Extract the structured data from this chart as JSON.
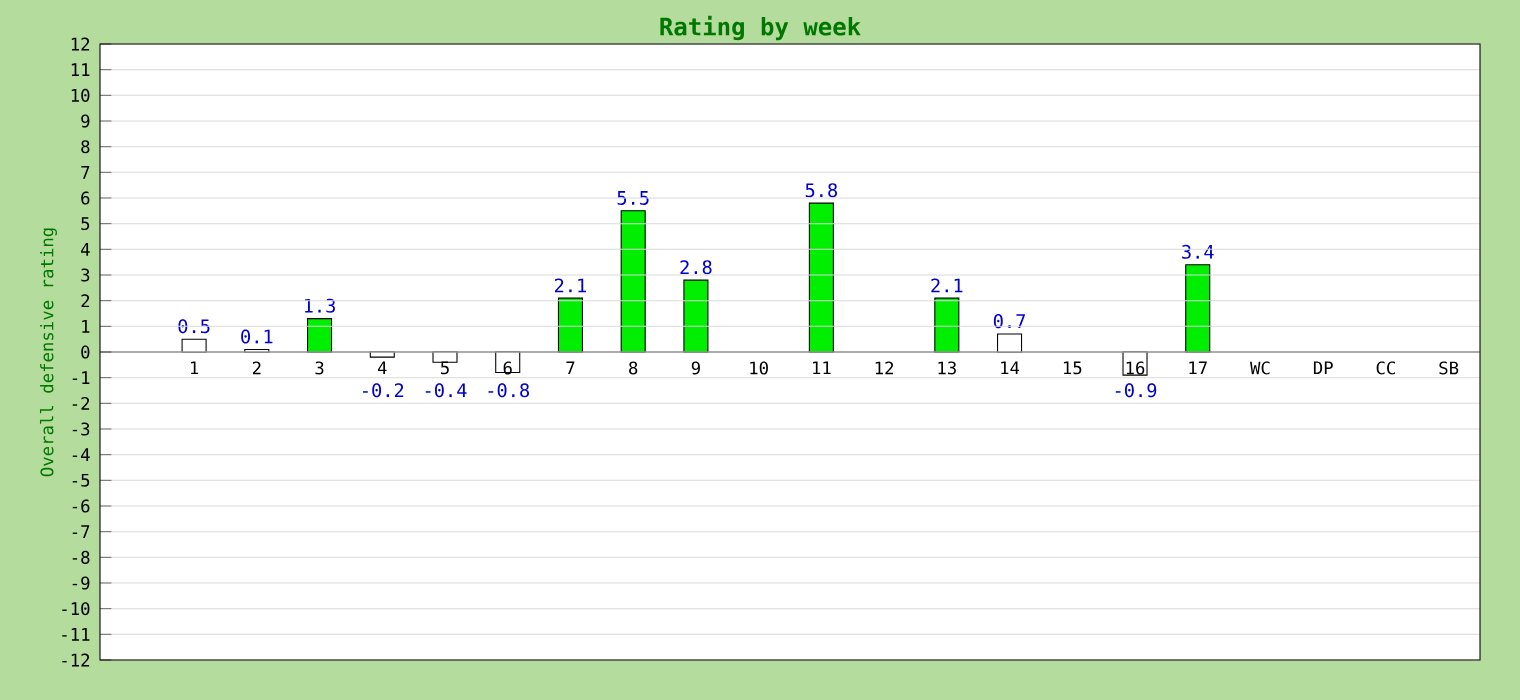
{
  "chart_data": {
    "type": "bar",
    "title": "Rating by week",
    "ylabel": "Overall defensive rating",
    "categories": [
      "1",
      "2",
      "3",
      "4",
      "5",
      "6",
      "7",
      "8",
      "9",
      "10",
      "11",
      "12",
      "13",
      "14",
      "15",
      "16",
      "17",
      "WC",
      "DP",
      "CC",
      "SB"
    ],
    "values": [
      0.5,
      0.1,
      1.3,
      -0.2,
      -0.4,
      -0.8,
      2.1,
      5.5,
      2.8,
      null,
      5.8,
      null,
      2.1,
      0.7,
      null,
      -0.9,
      3.4,
      null,
      null,
      null,
      null
    ],
    "colors": [
      "#ffffff",
      "#ffffff",
      "#00ee00",
      "#ffffff",
      "#ffffff",
      "#ffffff",
      "#00ee00",
      "#00ee00",
      "#00ee00",
      "#ffffff",
      "#00ee00",
      "#ffffff",
      "#00ee00",
      "#ffffff",
      "#ffffff",
      "#ffffff",
      "#00ee00",
      "#ffffff",
      "#ffffff",
      "#ffffff",
      "#ffffff"
    ],
    "ylim": [
      -12,
      12
    ],
    "yticks": [
      -12,
      -11,
      -10,
      -9,
      -8,
      -7,
      -6,
      -5,
      -4,
      -3,
      -2,
      -1,
      0,
      1,
      2,
      3,
      4,
      5,
      6,
      7,
      8,
      9,
      10,
      11,
      12
    ],
    "grid": "y",
    "data_labels": true
  }
}
